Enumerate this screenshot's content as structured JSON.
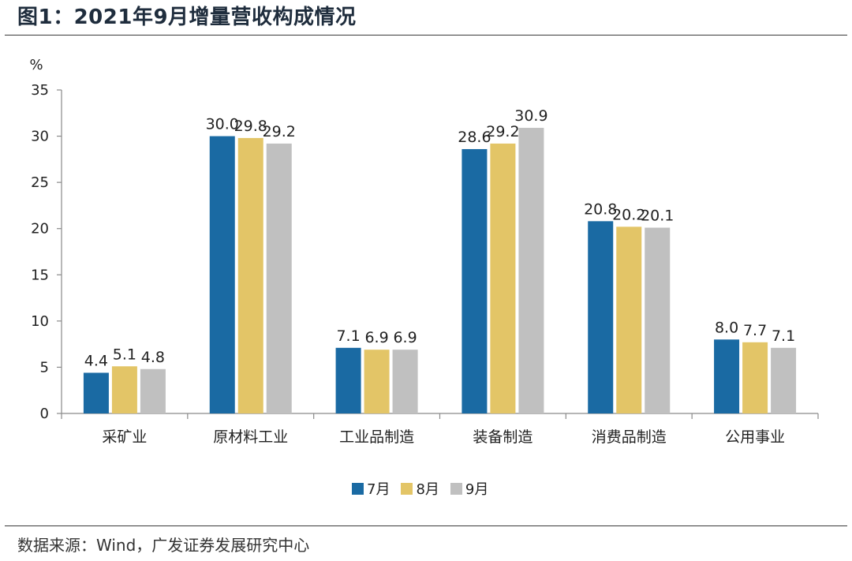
{
  "figure": {
    "title": "图1：2021年9月增量营收构成情况",
    "source": "数据来源：Wind，广发证券发展研究中心"
  },
  "colors": {
    "series_7": "#1a6aa3",
    "series_8": "#e3c567",
    "series_9": "#c0c0c0"
  },
  "chart_data": {
    "type": "bar",
    "title": "",
    "xlabel": "",
    "ylabel": "%",
    "ylim": [
      0,
      35
    ],
    "yticks": [
      0,
      5,
      10,
      15,
      20,
      25,
      30,
      35
    ],
    "grid": false,
    "legend_position": "bottom-center",
    "categories": [
      "采矿业",
      "原材料工业",
      "工业品制造",
      "装备制造",
      "消费品制造",
      "公用事业"
    ],
    "series": [
      {
        "name": "7月",
        "values": [
          4.4,
          30.0,
          7.1,
          28.6,
          20.8,
          8.0
        ]
      },
      {
        "name": "8月",
        "values": [
          5.1,
          29.8,
          6.9,
          29.2,
          20.2,
          7.7
        ]
      },
      {
        "name": "9月",
        "values": [
          4.8,
          29.2,
          6.9,
          30.9,
          20.1,
          7.1
        ]
      }
    ]
  }
}
